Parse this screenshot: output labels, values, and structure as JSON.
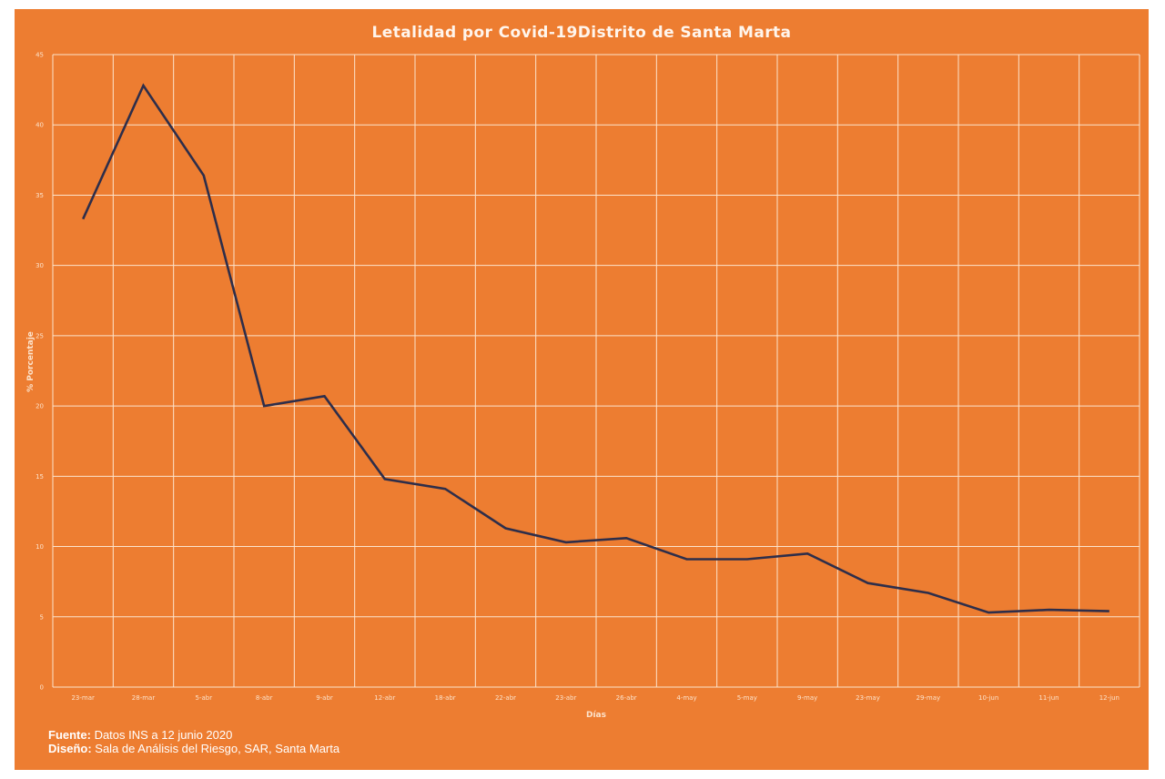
{
  "chart_data": {
    "type": "line",
    "title": "Letalidad por Covid-19Distrito de Santa Marta",
    "xlabel": "Días",
    "ylabel": "% Porcentaje",
    "ylim": [
      0,
      45
    ],
    "yticks": [
      0,
      5,
      10,
      15,
      20,
      25,
      30,
      35,
      40,
      45
    ],
    "grid": true,
    "legend": "none",
    "categories": [
      "23-mar",
      "28-mar",
      "5-abr",
      "8-abr",
      "9-abr",
      "12-abr",
      "18-abr",
      "22-abr",
      "23-abr",
      "26-abr",
      "4-may",
      "5-may",
      "9-may",
      "23-may",
      "29-may",
      "10-jun",
      "11-jun",
      "12-jun"
    ],
    "series": [
      {
        "name": "Letalidad",
        "color": "#2E2E4A",
        "values": [
          33.3,
          42.8,
          36.4,
          20.0,
          20.7,
          14.8,
          14.1,
          11.3,
          10.3,
          10.6,
          9.1,
          9.1,
          9.5,
          7.4,
          6.7,
          5.3,
          5.5,
          5.4
        ]
      }
    ]
  },
  "colors": {
    "background": "#ED7D31",
    "grid": "#FCE3CC",
    "line": "#2E2E4A",
    "text": "#FFFFFF"
  },
  "credits": {
    "source_label": "Fuente:",
    "source_text": " Datos INS a 12 junio 2020",
    "design_label": "Diseño:",
    "design_text": " Sala de Análisis del Riesgo, SAR, Santa Marta"
  }
}
